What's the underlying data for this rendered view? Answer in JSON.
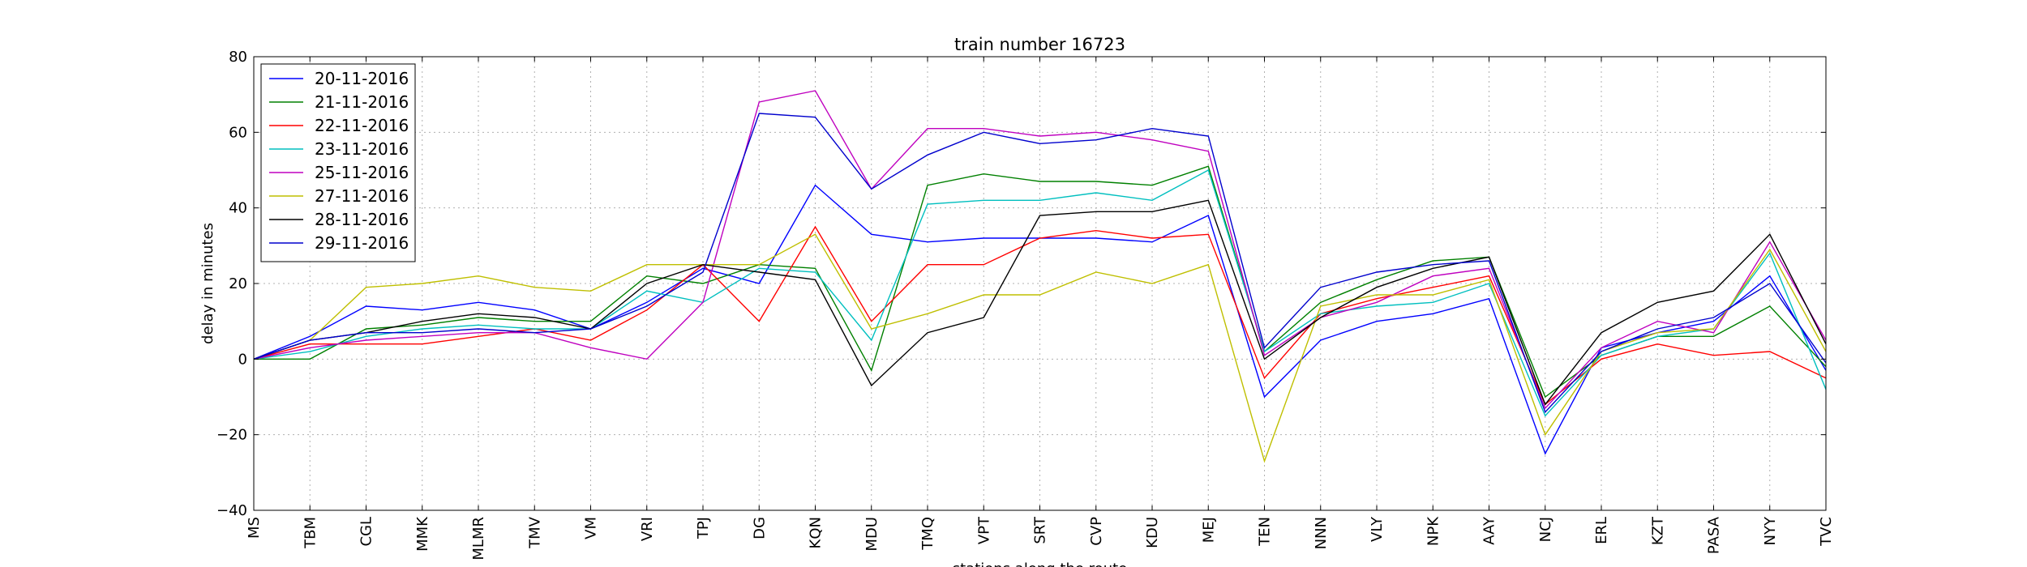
{
  "chart_data": {
    "type": "line",
    "title": "train number 16723",
    "xlabel": "stations along the route",
    "ylabel": "delay in minutes",
    "ylim": [
      -40,
      80
    ],
    "yticks": [
      -40,
      -20,
      0,
      20,
      40,
      60,
      80
    ],
    "ytick_labels": [
      "−40",
      "−20",
      "0",
      "20",
      "40",
      "60",
      "80"
    ],
    "grid": true,
    "legend_position": "top-left",
    "categories": [
      "MS",
      "TBM",
      "CGL",
      "MMK",
      "MLMR",
      "TMV",
      "VM",
      "VRI",
      "TPJ",
      "DG",
      "KQN",
      "MDU",
      "TMQ",
      "VPT",
      "SRT",
      "CVP",
      "KDU",
      "MEJ",
      "TEN",
      "NNN",
      "VLY",
      "NPK",
      "AAY",
      "NCJ",
      "ERL",
      "KZT",
      "PASA",
      "NYY",
      "TVC"
    ],
    "series": [
      {
        "name": "20-11-2016",
        "color": "#0000ff",
        "values": [
          0,
          6,
          14,
          13,
          15,
          13,
          8,
          15,
          24,
          20,
          46,
          33,
          31,
          32,
          32,
          32,
          31,
          38,
          -10,
          5,
          10,
          12,
          16,
          -25,
          3,
          7,
          10,
          22,
          -3
        ]
      },
      {
        "name": "21-11-2016",
        "color": "#008000",
        "values": [
          0,
          0,
          8,
          9,
          11,
          10,
          10,
          22,
          20,
          25,
          24,
          -3,
          46,
          49,
          47,
          47,
          46,
          51,
          2,
          15,
          21,
          26,
          27,
          -10,
          1,
          6,
          6,
          14,
          -2
        ]
      },
      {
        "name": "22-11-2016",
        "color": "#ff0000",
        "values": [
          0,
          4,
          4,
          4,
          6,
          8,
          5,
          13,
          25,
          10,
          35,
          10,
          25,
          25,
          32,
          34,
          32,
          33,
          -5,
          12,
          16,
          19,
          22,
          -12,
          0,
          4,
          1,
          2,
          -5
        ]
      },
      {
        "name": "23-11-2016",
        "color": "#00bfbf",
        "values": [
          0,
          2,
          6,
          8,
          9,
          8,
          8,
          18,
          15,
          24,
          23,
          5,
          41,
          42,
          42,
          44,
          42,
          50,
          2,
          12,
          14,
          15,
          20,
          -15,
          1,
          6,
          8,
          28,
          -8
        ]
      },
      {
        "name": "25-11-2016",
        "color": "#bf00bf",
        "values": [
          0,
          3,
          5,
          6,
          7,
          7,
          3,
          0,
          15,
          68,
          71,
          45,
          61,
          61,
          59,
          60,
          58,
          55,
          1,
          11,
          15,
          22,
          24,
          -13,
          3,
          10,
          7,
          31,
          5
        ]
      },
      {
        "name": "27-11-2016",
        "color": "#bfbf00",
        "values": [
          0,
          5,
          19,
          20,
          22,
          19,
          18,
          25,
          25,
          25,
          33,
          8,
          12,
          17,
          17,
          23,
          20,
          25,
          -27,
          14,
          17,
          17,
          21,
          -20,
          2,
          7,
          8,
          29,
          2
        ]
      },
      {
        "name": "28-11-2016",
        "color": "#000000",
        "values": [
          0,
          5,
          7,
          10,
          12,
          11,
          8,
          20,
          25,
          23,
          21,
          -7,
          7,
          11,
          38,
          39,
          39,
          42,
          0,
          11,
          19,
          24,
          27,
          -12,
          7,
          15,
          18,
          33,
          4
        ]
      },
      {
        "name": "29-11-2016",
        "color": "#0000cd",
        "values": [
          0,
          5,
          7,
          7,
          8,
          7,
          8,
          14,
          23,
          65,
          64,
          45,
          54,
          60,
          57,
          58,
          61,
          59,
          3,
          19,
          23,
          25,
          26,
          -14,
          2,
          8,
          11,
          20,
          -1
        ]
      }
    ]
  }
}
